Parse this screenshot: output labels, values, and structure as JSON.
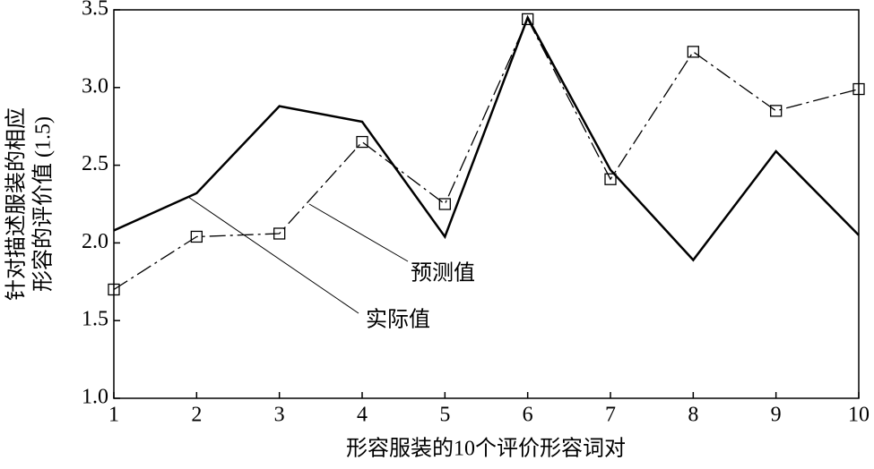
{
  "chart_data": {
    "type": "line",
    "xlabel": "形容服装的10个评价形容词对",
    "ylabel": [
      "针对描述服装的相应",
      "形容的评价值 (1.5)"
    ],
    "x": [
      1,
      2,
      3,
      4,
      5,
      6,
      7,
      8,
      9,
      10
    ],
    "series": [
      {
        "name": "实际值",
        "color": "#000000",
        "dash": "solid",
        "marker": "none",
        "values": [
          2.08,
          2.32,
          2.88,
          2.78,
          2.04,
          3.45,
          2.47,
          1.89,
          2.59,
          2.05
        ]
      },
      {
        "name": "预测值",
        "color": "#000000",
        "dash": "dashed",
        "marker": "square",
        "values": [
          1.7,
          2.04,
          2.06,
          2.65,
          2.25,
          3.44,
          2.41,
          3.23,
          2.85,
          2.99
        ]
      }
    ],
    "xlim": [
      1,
      10
    ],
    "xticks": [
      1,
      2,
      3,
      4,
      5,
      6,
      7,
      8,
      9,
      10
    ],
    "ylim": [
      1.0,
      3.5
    ],
    "yticks": [
      {
        "value": 1.0,
        "label": "1.0"
      },
      1.5,
      {
        "value": 2.0,
        "label": "2.0"
      },
      2.5,
      {
        "value": 3.0,
        "label": "3.0"
      },
      3.5
    ],
    "grid": false
  }
}
